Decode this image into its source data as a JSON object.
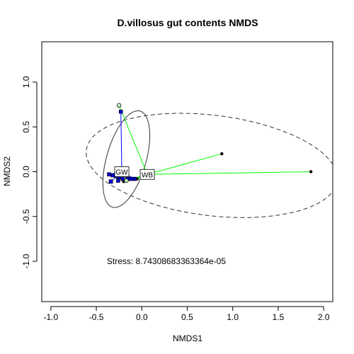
{
  "chart_data": {
    "type": "scatter",
    "title": "D.villosus gut contents NMDS",
    "xlabel": "NMDS1",
    "ylabel": "NMDS2",
    "xlim": [
      -1.1,
      2.1
    ],
    "ylim": [
      -1.45,
      1.45
    ],
    "xticks": [
      -1.0,
      -0.5,
      0.0,
      0.5,
      1.0,
      1.5,
      2.0
    ],
    "yticks": [
      -1.0,
      -0.5,
      0.0,
      0.5,
      1.0
    ],
    "xtick_labels": [
      "-1.0",
      "-0.5",
      "0.0",
      "0.5",
      "1.0",
      "1.5",
      "2.0"
    ],
    "ytick_labels": [
      "-1.0",
      "-0.5",
      "0.0",
      "0.5",
      "1.0"
    ],
    "annotation": "Stress: 8.74308683363364e-05",
    "annotation_pos": [
      0.27,
      -1.0
    ],
    "grid": false,
    "series": [
      {
        "color": "#0000ff",
        "stroke": "#0000ff",
        "centroid": [
          -0.22,
          0.0
        ],
        "centroid_label": "GW",
        "points": [
          [
            -0.23,
            0.67
          ],
          [
            -0.36,
            -0.03
          ],
          [
            -0.32,
            -0.04
          ],
          [
            -0.28,
            -0.05
          ],
          [
            -0.25,
            -0.06
          ],
          [
            -0.21,
            -0.08
          ],
          [
            -0.16,
            -0.08
          ],
          [
            -0.12,
            -0.08
          ],
          [
            -0.08,
            -0.08
          ],
          [
            -0.34,
            -0.11
          ],
          [
            -0.26,
            -0.1
          ]
        ],
        "point_shapes": [
          "square",
          "square",
          "square",
          "square",
          "square",
          "square",
          "square",
          "square",
          "square",
          "open-square",
          "square"
        ],
        "ellipse": {
          "cx": -0.17,
          "cy": 0.14,
          "rx": 0.55,
          "ry": 0.22,
          "angle": -74,
          "dash": false
        }
      },
      {
        "color": "#00ff00",
        "stroke": "#00ff00",
        "centroid": [
          0.06,
          -0.03
        ],
        "centroid_label": "WB",
        "points": [
          [
            -0.25,
            0.74
          ],
          [
            0.88,
            0.2
          ],
          [
            1.86,
            0.0
          ],
          [
            -0.2,
            -0.11
          ],
          [
            -0.17,
            -0.1
          ],
          [
            0.05,
            -0.05
          ],
          [
            0.02,
            -0.07
          ],
          [
            -0.05,
            -0.08
          ]
        ],
        "point_shapes": [
          "open-circle",
          "dot",
          "dot",
          "dot",
          "open-circle",
          "open-square",
          "dot",
          "dot"
        ],
        "ellipse": {
          "cx": 0.77,
          "cy": 0.07,
          "rx": 1.39,
          "ry": 0.56,
          "angle": 7,
          "dash": true
        }
      }
    ]
  }
}
